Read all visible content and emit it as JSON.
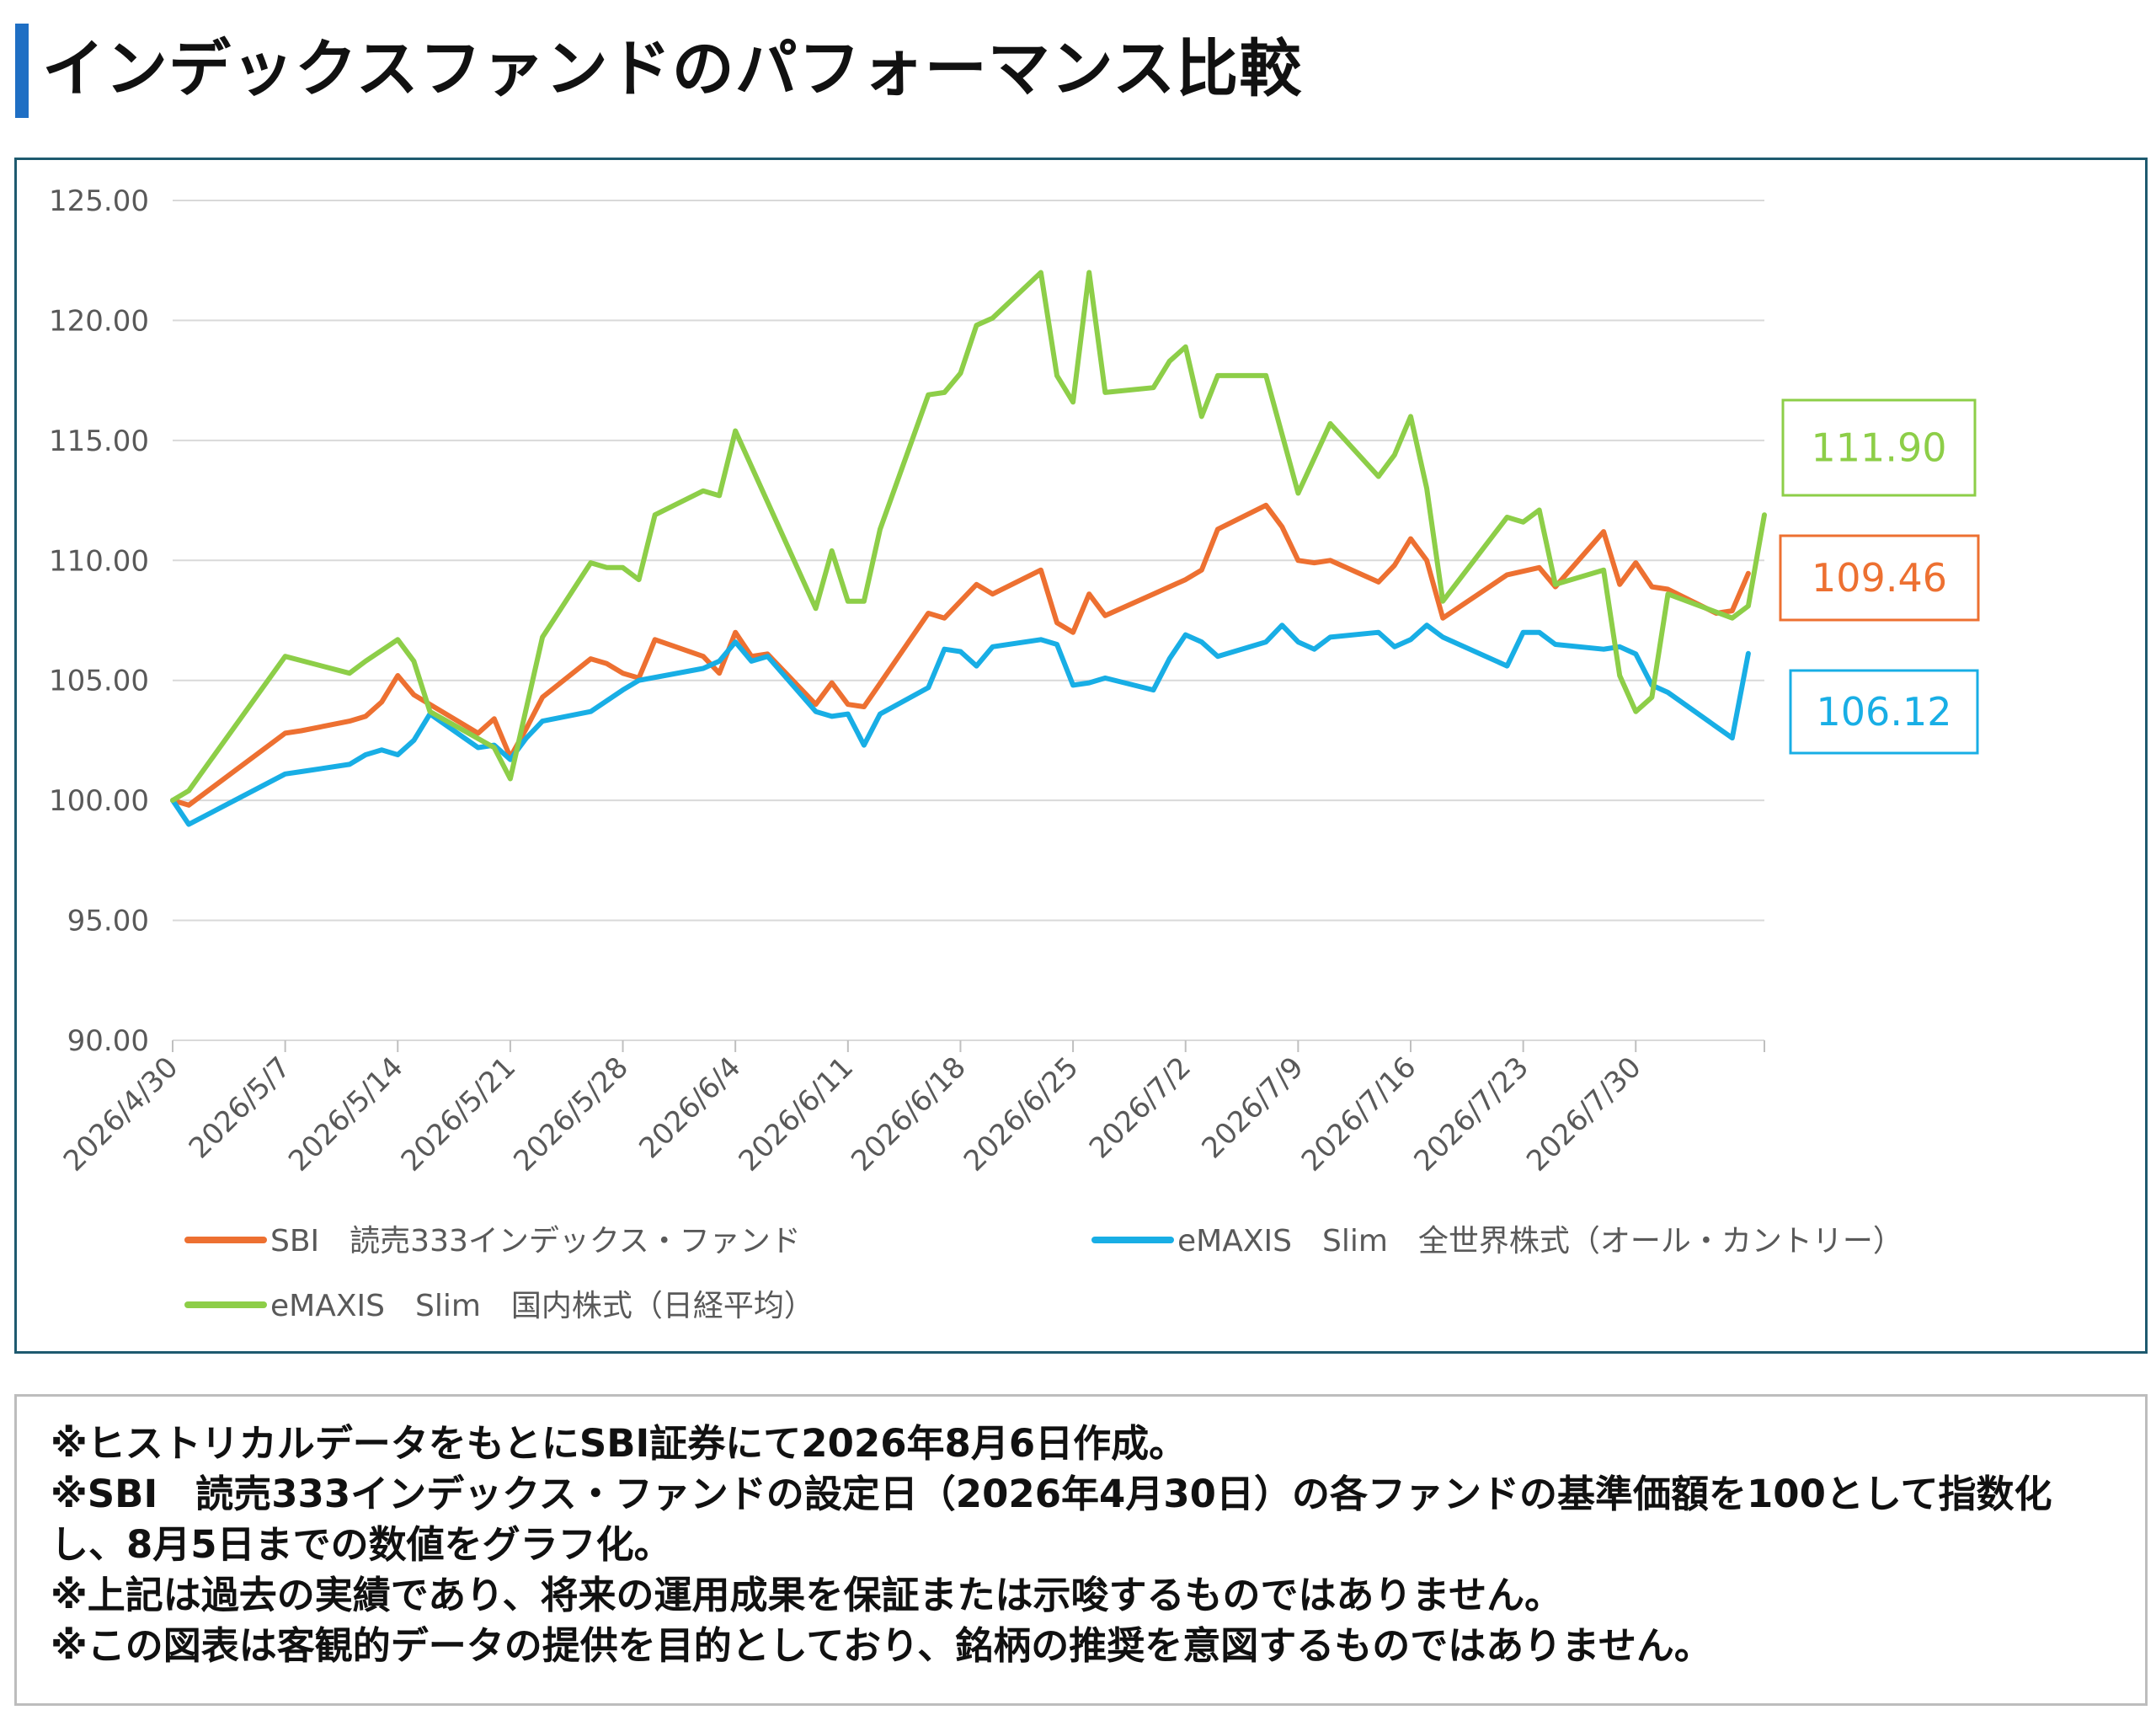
{
  "title": "インデックスファンドのパフォーマンス比較",
  "notes": [
    "※ヒストリカルデータをもとにSBI証券にて2026年8月6日作成。",
    "※SBI　読売333インデックス・ファンドの設定日（2026年4月30日）の各ファンドの基準価額を100として指数化し、8月5日までの数値をグラフ化。",
    "※上記は過去の実績であり、将来の運用成果を保証または示唆するものではありません。",
    "※この図表は客観的データの提供を目的としており、銘柄の推奨を意図するものではありません。"
  ],
  "chart_data": {
    "type": "line",
    "title": "",
    "xlabel": "",
    "ylabel": "",
    "ylim": [
      90,
      125
    ],
    "y_ticks": [
      "125.00",
      "120.00",
      "115.00",
      "110.00",
      "105.00",
      "100.00",
      "95.00",
      "90.00"
    ],
    "x_tick_labels": [
      "2026/4/30",
      "2026/5/7",
      "2026/5/14",
      "2026/5/21",
      "2026/5/28",
      "2026/6/4",
      "2026/6/11",
      "2026/6/18",
      "2026/6/25",
      "2026/7/2",
      "2026/7/9",
      "2026/7/16",
      "2026/7/23",
      "2026/7/30"
    ],
    "x_range": [
      "2026-04-30",
      "2026-08-07"
    ],
    "grid": true,
    "legend_position": "bottom",
    "series": [
      {
        "name": "SBI　読売333インデックス・ファンド",
        "color": "#ed7031",
        "end_label": "109.46",
        "points": [
          [
            "2026-04-30",
            100.0
          ],
          [
            "2026-05-01",
            99.8
          ],
          [
            "2026-05-07",
            102.8
          ],
          [
            "2026-05-08",
            102.9
          ],
          [
            "2026-05-11",
            103.3
          ],
          [
            "2026-05-12",
            103.5
          ],
          [
            "2026-05-13",
            104.1
          ],
          [
            "2026-05-14",
            105.2
          ],
          [
            "2026-05-15",
            104.4
          ],
          [
            "2026-05-19",
            102.8
          ],
          [
            "2026-05-20",
            103.4
          ],
          [
            "2026-05-21",
            101.8
          ],
          [
            "2026-05-22",
            103.0
          ],
          [
            "2026-05-23",
            104.3
          ],
          [
            "2026-05-26",
            105.9
          ],
          [
            "2026-05-27",
            105.7
          ],
          [
            "2026-05-28",
            105.3
          ],
          [
            "2026-05-29",
            105.1
          ],
          [
            "2026-05-30",
            106.7
          ],
          [
            "2026-06-02",
            106.0
          ],
          [
            "2026-06-03",
            105.3
          ],
          [
            "2026-06-04",
            107.0
          ],
          [
            "2026-06-05",
            106.0
          ],
          [
            "2026-06-06",
            106.1
          ],
          [
            "2026-06-09",
            104.0
          ],
          [
            "2026-06-10",
            104.9
          ],
          [
            "2026-06-11",
            104.0
          ],
          [
            "2026-06-12",
            103.9
          ],
          [
            "2026-06-16",
            107.8
          ],
          [
            "2026-06-17",
            107.6
          ],
          [
            "2026-06-19",
            109.0
          ],
          [
            "2026-06-20",
            108.6
          ],
          [
            "2026-06-23",
            109.6
          ],
          [
            "2026-06-24",
            107.4
          ],
          [
            "2026-06-25",
            107.0
          ],
          [
            "2026-06-26",
            108.6
          ],
          [
            "2026-06-27",
            107.7
          ],
          [
            "2026-06-30",
            108.6
          ],
          [
            "2026-07-01",
            108.9
          ],
          [
            "2026-07-02",
            109.2
          ],
          [
            "2026-07-03",
            109.6
          ],
          [
            "2026-07-04",
            111.3
          ],
          [
            "2026-07-07",
            112.3
          ],
          [
            "2026-07-08",
            111.4
          ],
          [
            "2026-07-09",
            110.0
          ],
          [
            "2026-07-10",
            109.9
          ],
          [
            "2026-07-11",
            110.0
          ],
          [
            "2026-07-14",
            109.1
          ],
          [
            "2026-07-15",
            109.8
          ],
          [
            "2026-07-16",
            110.9
          ],
          [
            "2026-07-17",
            110.0
          ],
          [
            "2026-07-18",
            107.6
          ],
          [
            "2026-07-22",
            109.4
          ],
          [
            "2026-07-24",
            109.7
          ],
          [
            "2026-07-25",
            108.9
          ],
          [
            "2026-07-28",
            111.2
          ],
          [
            "2026-07-29",
            109.0
          ],
          [
            "2026-07-30",
            109.9
          ],
          [
            "2026-07-31",
            108.9
          ],
          [
            "2026-08-01",
            108.8
          ],
          [
            "2026-08-04",
            107.8
          ],
          [
            "2026-08-05",
            107.9
          ],
          [
            "2026-08-06",
            109.46
          ]
        ]
      },
      {
        "name": "eMAXIS　Slim　全世界株式（オール・カントリー）",
        "color": "#18aee5",
        "end_label": "106.12",
        "points": [
          [
            "2026-04-30",
            100.0
          ],
          [
            "2026-05-01",
            99.0
          ],
          [
            "2026-05-07",
            101.1
          ],
          [
            "2026-05-08",
            101.2
          ],
          [
            "2026-05-11",
            101.5
          ],
          [
            "2026-05-12",
            101.9
          ],
          [
            "2026-05-13",
            102.1
          ],
          [
            "2026-05-14",
            101.9
          ],
          [
            "2026-05-15",
            102.5
          ],
          [
            "2026-05-16",
            103.6
          ],
          [
            "2026-05-19",
            102.2
          ],
          [
            "2026-05-20",
            102.3
          ],
          [
            "2026-05-21",
            101.7
          ],
          [
            "2026-05-22",
            102.6
          ],
          [
            "2026-05-23",
            103.3
          ],
          [
            "2026-05-26",
            103.7
          ],
          [
            "2026-05-28",
            104.6
          ],
          [
            "2026-05-29",
            105.0
          ],
          [
            "2026-06-02",
            105.5
          ],
          [
            "2026-06-03",
            105.8
          ],
          [
            "2026-06-04",
            106.6
          ],
          [
            "2026-06-05",
            105.8
          ],
          [
            "2026-06-06",
            106.0
          ],
          [
            "2026-06-09",
            103.7
          ],
          [
            "2026-06-10",
            103.5
          ],
          [
            "2026-06-11",
            103.6
          ],
          [
            "2026-06-12",
            102.3
          ],
          [
            "2026-06-13",
            103.6
          ],
          [
            "2026-06-16",
            104.7
          ],
          [
            "2026-06-17",
            106.3
          ],
          [
            "2026-06-18",
            106.2
          ],
          [
            "2026-06-19",
            105.6
          ],
          [
            "2026-06-20",
            106.4
          ],
          [
            "2026-06-23",
            106.7
          ],
          [
            "2026-06-24",
            106.5
          ],
          [
            "2026-06-25",
            104.8
          ],
          [
            "2026-06-26",
            104.9
          ],
          [
            "2026-06-27",
            105.1
          ],
          [
            "2026-06-30",
            104.6
          ],
          [
            "2026-07-01",
            105.9
          ],
          [
            "2026-07-02",
            106.9
          ],
          [
            "2026-07-03",
            106.6
          ],
          [
            "2026-07-04",
            106.0
          ],
          [
            "2026-07-07",
            106.6
          ],
          [
            "2026-07-08",
            107.3
          ],
          [
            "2026-07-09",
            106.6
          ],
          [
            "2026-07-10",
            106.3
          ],
          [
            "2026-07-11",
            106.8
          ],
          [
            "2026-07-14",
            107.0
          ],
          [
            "2026-07-15",
            106.4
          ],
          [
            "2026-07-16",
            106.7
          ],
          [
            "2026-07-17",
            107.3
          ],
          [
            "2026-07-18",
            106.8
          ],
          [
            "2026-07-22",
            105.6
          ],
          [
            "2026-07-23",
            107.0
          ],
          [
            "2026-07-24",
            107.0
          ],
          [
            "2026-07-25",
            106.5
          ],
          [
            "2026-07-28",
            106.3
          ],
          [
            "2026-07-29",
            106.4
          ],
          [
            "2026-07-30",
            106.1
          ],
          [
            "2026-07-31",
            104.8
          ],
          [
            "2026-08-01",
            104.5
          ],
          [
            "2026-08-05",
            102.6
          ],
          [
            "2026-08-06",
            106.12
          ]
        ]
      },
      {
        "name": "eMAXIS　Slim　国内株式（日経平均）",
        "color": "#8dce48",
        "end_label": "111.90",
        "points": [
          [
            "2026-04-30",
            100.0
          ],
          [
            "2026-05-01",
            100.4
          ],
          [
            "2026-05-07",
            106.0
          ],
          [
            "2026-05-11",
            105.3
          ],
          [
            "2026-05-12",
            105.8
          ],
          [
            "2026-05-14",
            106.7
          ],
          [
            "2026-05-15",
            105.8
          ],
          [
            "2026-05-16",
            103.7
          ],
          [
            "2026-05-20",
            102.2
          ],
          [
            "2026-05-21",
            100.9
          ],
          [
            "2026-05-23",
            106.8
          ],
          [
            "2026-05-26",
            109.9
          ],
          [
            "2026-05-27",
            109.7
          ],
          [
            "2026-05-28",
            109.7
          ],
          [
            "2026-05-29",
            109.2
          ],
          [
            "2026-05-30",
            111.9
          ],
          [
            "2026-06-02",
            112.9
          ],
          [
            "2026-06-03",
            112.7
          ],
          [
            "2026-06-04",
            115.4
          ],
          [
            "2026-06-09",
            108.0
          ],
          [
            "2026-06-10",
            110.4
          ],
          [
            "2026-06-11",
            108.3
          ],
          [
            "2026-06-12",
            108.3
          ],
          [
            "2026-06-13",
            111.3
          ],
          [
            "2026-06-16",
            116.9
          ],
          [
            "2026-06-17",
            117.0
          ],
          [
            "2026-06-18",
            117.8
          ],
          [
            "2026-06-19",
            119.8
          ],
          [
            "2026-06-20",
            120.1
          ],
          [
            "2026-06-23",
            122.0
          ],
          [
            "2026-06-24",
            117.7
          ],
          [
            "2026-06-25",
            116.6
          ],
          [
            "2026-06-26",
            122.0
          ],
          [
            "2026-06-27",
            117.0
          ],
          [
            "2026-06-30",
            117.2
          ],
          [
            "2026-07-01",
            118.3
          ],
          [
            "2026-07-02",
            118.9
          ],
          [
            "2026-07-03",
            116.0
          ],
          [
            "2026-07-04",
            117.7
          ],
          [
            "2026-07-07",
            117.7
          ],
          [
            "2026-07-09",
            112.8
          ],
          [
            "2026-07-11",
            115.7
          ],
          [
            "2026-07-14",
            113.5
          ],
          [
            "2026-07-15",
            114.4
          ],
          [
            "2026-07-16",
            116.0
          ],
          [
            "2026-07-17",
            113.0
          ],
          [
            "2026-07-18",
            108.3
          ],
          [
            "2026-07-22",
            111.8
          ],
          [
            "2026-07-23",
            111.6
          ],
          [
            "2026-07-24",
            112.1
          ],
          [
            "2026-07-25",
            109.0
          ],
          [
            "2026-07-28",
            109.6
          ],
          [
            "2026-07-29",
            105.2
          ],
          [
            "2026-07-30",
            103.7
          ],
          [
            "2026-07-31",
            104.3
          ],
          [
            "2026-08-01",
            108.6
          ],
          [
            "2026-08-05",
            107.6
          ],
          [
            "2026-08-06",
            108.1
          ],
          [
            "2026-08-07",
            111.9
          ]
        ]
      }
    ]
  }
}
